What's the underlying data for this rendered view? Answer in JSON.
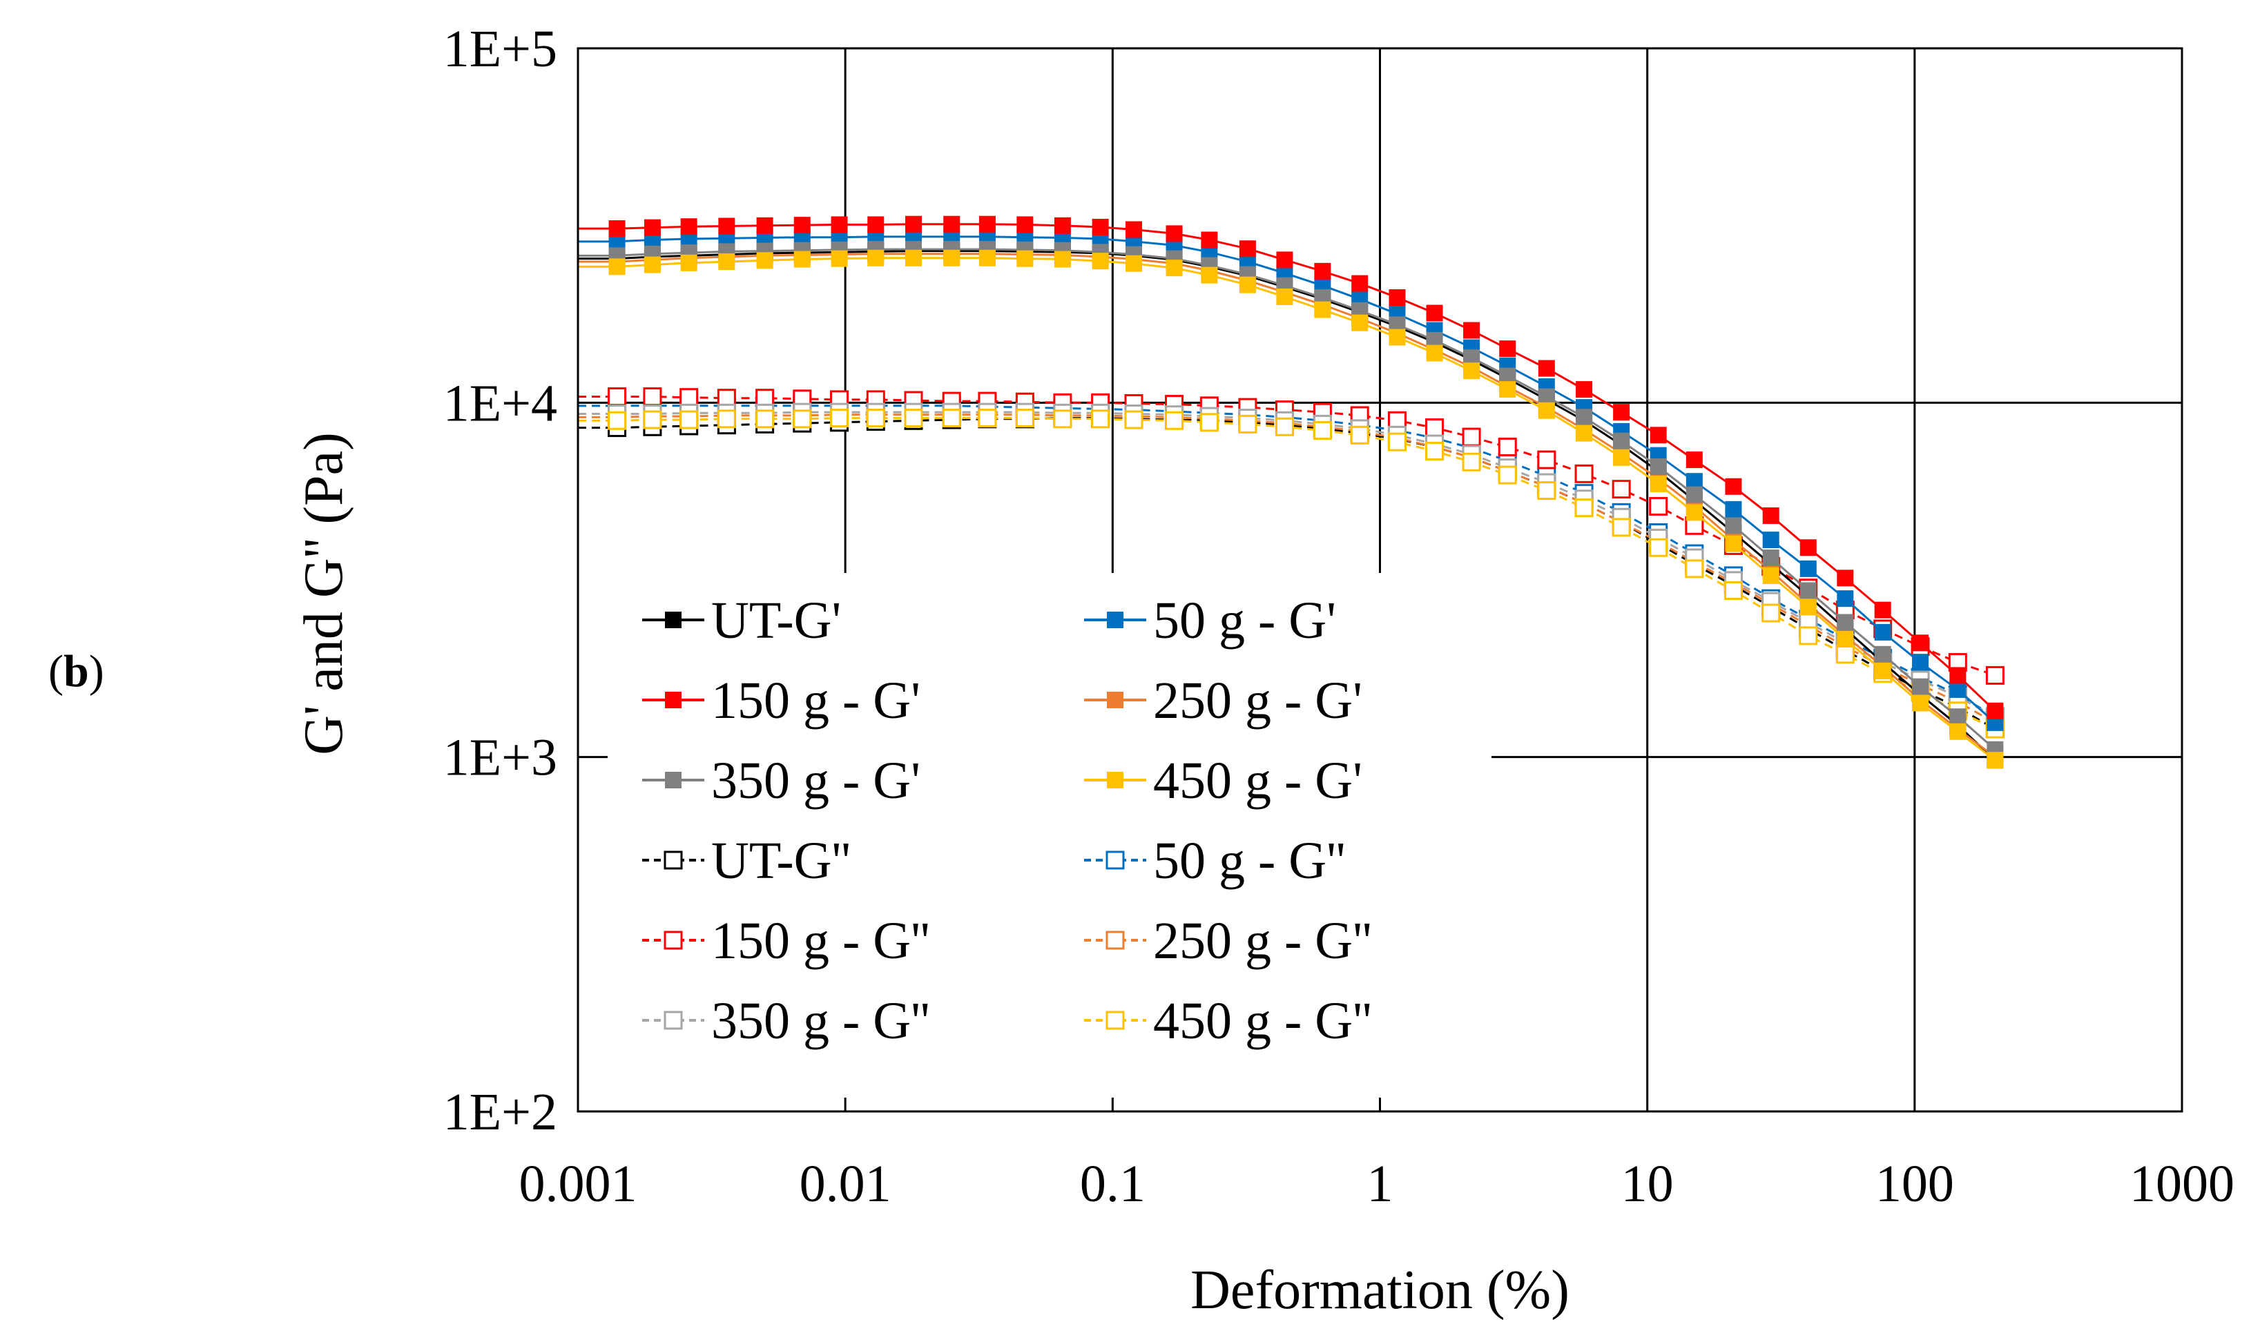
{
  "panel": {
    "open": "(",
    "letter": "b",
    "close": ")"
  },
  "chart_data": {
    "type": "line",
    "title": "",
    "xlabel": "Deformation (%)",
    "ylabel": "G' and G'' (Pa)",
    "x_scale": "log",
    "y_scale": "log",
    "xlim": [
      0.001,
      1000
    ],
    "ylim": [
      100,
      100000
    ],
    "x_ticks": [
      0.001,
      0.01,
      0.1,
      1,
      10,
      100,
      1000
    ],
    "x_tick_labels": [
      "0.001",
      "0.01",
      "0.1",
      "1",
      "10",
      "100",
      "1000"
    ],
    "y_ticks": [
      100,
      1000,
      10000,
      100000
    ],
    "y_tick_labels": [
      "1E+2",
      "1E+3",
      "1E+4",
      "1E+5"
    ],
    "grid": true,
    "legend_position": "lower-left",
    "x": [
      0.0014,
      0.0019,
      0.0026,
      0.0036,
      0.005,
      0.0069,
      0.0095,
      0.013,
      0.018,
      0.025,
      0.034,
      0.047,
      0.065,
      0.09,
      0.12,
      0.17,
      0.23,
      0.32,
      0.44,
      0.61,
      0.84,
      1.16,
      1.6,
      2.2,
      3.0,
      4.2,
      5.8,
      8.0,
      11,
      15,
      21,
      29,
      40,
      55,
      76,
      105,
      145,
      200
    ],
    "series": [
      {
        "name": "UT-G'",
        "color": "#000000",
        "filled": true,
        "dashed": false,
        "values": [
          25500,
          25800,
          26000,
          26200,
          26400,
          26500,
          26600,
          26700,
          26800,
          26800,
          26800,
          26700,
          26600,
          26400,
          26000,
          25300,
          24200,
          22800,
          21200,
          19600,
          18000,
          16400,
          14800,
          13200,
          11700,
          10200,
          8900,
          7600,
          6400,
          5300,
          4300,
          3500,
          2850,
          2300,
          1850,
          1500,
          1230,
          980
        ]
      },
      {
        "name": "50 g - G'",
        "color": "#0070c0",
        "filled": true,
        "dashed": false,
        "values": [
          28500,
          28800,
          29000,
          29100,
          29200,
          29300,
          29300,
          29400,
          29400,
          29400,
          29400,
          29300,
          29200,
          29000,
          28500,
          27800,
          26600,
          25000,
          23200,
          21400,
          19600,
          17800,
          16000,
          14300,
          12700,
          11100,
          9700,
          8300,
          7100,
          6000,
          5000,
          4100,
          3400,
          2800,
          2250,
          1850,
          1550,
          1250
        ]
      },
      {
        "name": "150 g - G'",
        "color": "#ff0000",
        "filled": true,
        "dashed": false,
        "values": [
          31000,
          31200,
          31400,
          31500,
          31600,
          31700,
          31800,
          31800,
          31900,
          31900,
          31900,
          31800,
          31600,
          31300,
          30800,
          30000,
          28800,
          27200,
          25300,
          23500,
          21700,
          19800,
          17900,
          16000,
          14200,
          12500,
          10900,
          9400,
          8100,
          6900,
          5800,
          4800,
          3900,
          3200,
          2600,
          2100,
          1700,
          1350
        ]
      },
      {
        "name": "250 g - G'",
        "color": "#ed7d31",
        "filled": true,
        "dashed": false,
        "values": [
          25000,
          25300,
          25600,
          25800,
          26000,
          26100,
          26200,
          26300,
          26300,
          26300,
          26300,
          26200,
          26100,
          25800,
          25400,
          24700,
          23600,
          22100,
          20500,
          18900,
          17300,
          15700,
          14100,
          12600,
          11100,
          9700,
          8400,
          7200,
          6100,
          5100,
          4100,
          3350,
          2700,
          2200,
          1800,
          1450,
          1200,
          1000
        ]
      },
      {
        "name": "350 g - G'",
        "color": "#808080",
        "filled": true,
        "dashed": false,
        "values": [
          26000,
          26300,
          26500,
          26700,
          26800,
          26900,
          27000,
          27100,
          27100,
          27100,
          27100,
          27000,
          26900,
          26600,
          26200,
          25500,
          24400,
          23000,
          21400,
          19800,
          18200,
          16600,
          15000,
          13400,
          11900,
          10400,
          9100,
          7800,
          6600,
          5500,
          4500,
          3650,
          2950,
          2400,
          1950,
          1580,
          1300,
          1050
        ]
      },
      {
        "name": "450 g - G'",
        "color": "#ffc000",
        "filled": true,
        "dashed": false,
        "values": [
          24200,
          24500,
          24800,
          25000,
          25200,
          25400,
          25500,
          25600,
          25600,
          25600,
          25600,
          25500,
          25400,
          25100,
          24700,
          24000,
          22900,
          21500,
          19900,
          18300,
          16800,
          15300,
          13800,
          12300,
          10900,
          9500,
          8200,
          7000,
          5900,
          4900,
          4000,
          3250,
          2650,
          2150,
          1750,
          1420,
          1180,
          980
        ]
      },
      {
        "name": "UT-G''",
        "color": "#000000",
        "filled": false,
        "dashed": true,
        "values": [
          8500,
          8550,
          8600,
          8650,
          8700,
          8750,
          8800,
          8850,
          8900,
          8950,
          9000,
          9000,
          9050,
          9050,
          9000,
          8950,
          8900,
          8800,
          8650,
          8450,
          8200,
          7900,
          7500,
          7000,
          6400,
          5800,
          5200,
          4600,
          4000,
          3500,
          3050,
          2650,
          2300,
          2000,
          1750,
          1550,
          1380,
          1200
        ]
      },
      {
        "name": "50 g - G''",
        "color": "#0070c0",
        "filled": false,
        "dashed": true,
        "values": [
          9800,
          9800,
          9800,
          9800,
          9800,
          9800,
          9800,
          9800,
          9800,
          9800,
          9750,
          9700,
          9650,
          9600,
          9550,
          9450,
          9350,
          9250,
          9100,
          8900,
          8650,
          8350,
          7950,
          7450,
          6850,
          6200,
          5550,
          4900,
          4300,
          3750,
          3250,
          2800,
          2450,
          2150,
          1900,
          1680,
          1500,
          1300
        ]
      },
      {
        "name": "150 g - G''",
        "color": "#ff0000",
        "filled": false,
        "dashed": true,
        "values": [
          10400,
          10400,
          10350,
          10300,
          10300,
          10250,
          10200,
          10200,
          10150,
          10100,
          10100,
          10050,
          10000,
          10000,
          9950,
          9900,
          9800,
          9700,
          9550,
          9400,
          9200,
          8900,
          8500,
          8000,
          7500,
          6900,
          6300,
          5700,
          5100,
          4500,
          3950,
          3450,
          3000,
          2600,
          2300,
          2050,
          1850,
          1700
        ]
      },
      {
        "name": "250 g - G''",
        "color": "#ed7d31",
        "filled": false,
        "dashed": true,
        "values": [
          9100,
          9150,
          9150,
          9200,
          9200,
          9200,
          9250,
          9250,
          9250,
          9250,
          9250,
          9250,
          9200,
          9200,
          9150,
          9100,
          9000,
          8900,
          8750,
          8550,
          8300,
          7950,
          7500,
          7000,
          6400,
          5800,
          5200,
          4600,
          4050,
          3550,
          3100,
          2700,
          2350,
          2050,
          1800,
          1600,
          1430,
          1250
        ]
      },
      {
        "name": "350 g - G''",
        "color": "#a6a6a6",
        "filled": false,
        "dashed": true,
        "values": [
          9300,
          9300,
          9350,
          9350,
          9350,
          9400,
          9400,
          9400,
          9400,
          9400,
          9400,
          9400,
          9350,
          9350,
          9300,
          9250,
          9150,
          9050,
          8900,
          8700,
          8450,
          8100,
          7650,
          7150,
          6550,
          5950,
          5350,
          4750,
          4150,
          3650,
          3150,
          2750,
          2400,
          2100,
          1850,
          1650,
          1480,
          1300
        ]
      },
      {
        "name": "450 g - G''",
        "color": "#ffc000",
        "filled": false,
        "dashed": true,
        "values": [
          8900,
          8950,
          8950,
          9000,
          9000,
          9000,
          9050,
          9050,
          9050,
          9050,
          9050,
          9050,
          9000,
          9000,
          8950,
          8900,
          8800,
          8700,
          8550,
          8350,
          8100,
          7750,
          7300,
          6800,
          6250,
          5650,
          5050,
          4450,
          3900,
          3400,
          2950,
          2550,
          2200,
          1950,
          1720,
          1520,
          1350,
          1200
        ]
      }
    ]
  }
}
